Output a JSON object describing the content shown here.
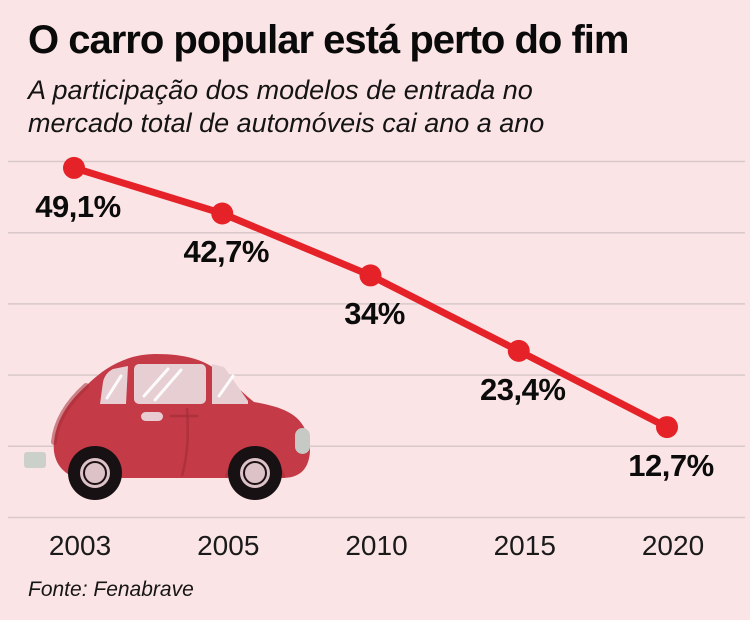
{
  "header": {
    "title": "O carro popular está perto do fim",
    "subtitle_line1": "A participação dos modelos de entrada no",
    "subtitle_line2": "mercado total de automóveis cai ano a ano"
  },
  "source": {
    "text": "Fonte: Fenabrave"
  },
  "colors": {
    "background": "#fbe4e6",
    "line_red": "#e62229",
    "grid": "#d8c8c9",
    "title_text": "#0a0a0a",
    "car_body_red": "#c43a46",
    "car_window_pink": "#e6ced3",
    "wheel_black": "#181114",
    "hub_pink": "#ddc2c8",
    "bumper_gray": "#c7cac4"
  },
  "illustration": {
    "name": "red-vintage-car"
  },
  "chart_data": {
    "type": "line",
    "title": "O carro popular está perto do fim",
    "subtitle": "A participação dos modelos de entrada no mercado total de automóveis cai ano a ano",
    "x": [
      2003,
      2005,
      2010,
      2015,
      2020
    ],
    "x_tick_labels": [
      "2003",
      "2005",
      "2010",
      "2015",
      "2020"
    ],
    "values": [
      49.1,
      42.7,
      34,
      23.4,
      12.7
    ],
    "point_labels": [
      "49,1%",
      "42,7%",
      "34%",
      "23,4%",
      "12,7%"
    ],
    "ylabel": "",
    "xlabel": "",
    "ylim": [
      0,
      50
    ],
    "grid": true,
    "gridline_count": 6,
    "legend": "none",
    "line_color": "#e62229",
    "grid_color": "#d8c8c9",
    "source": "Fonte: Fenabrave"
  }
}
